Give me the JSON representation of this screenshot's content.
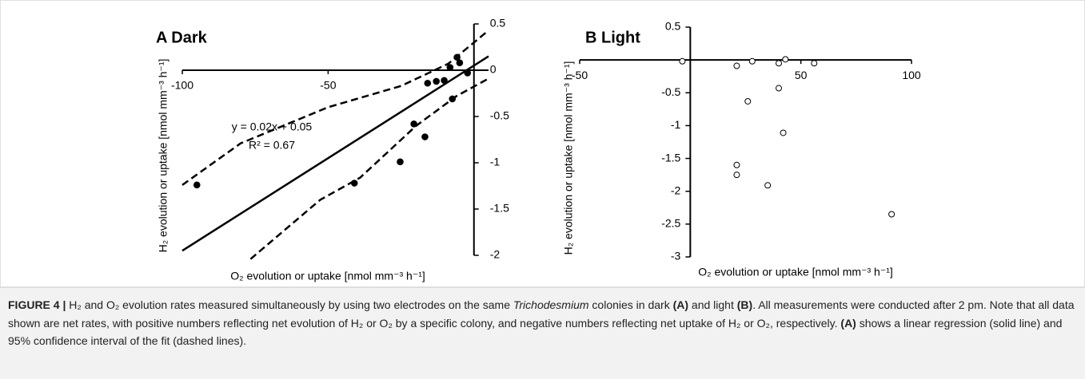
{
  "chart_data": [
    {
      "type": "scatter",
      "title": "A Dark",
      "x_label": "O₂ evolution or uptake [nmol mm⁻³ h⁻¹]",
      "y_label": "H₂ evolution or uptake [nmol mm⁻³ h⁻¹]",
      "xlim": [
        -100,
        5
      ],
      "ylim": [
        -2,
        0.5
      ],
      "xticks": [
        -100,
        -50
      ],
      "yticks": [
        0.5,
        0,
        -0.5,
        -1,
        -1.5,
        -2
      ],
      "ytick_side": "right",
      "annotations": [
        "y = 0.02x + 0.05",
        "R² = 0.67"
      ],
      "series": [
        {
          "kind": "points",
          "color": "#000000",
          "x": [
            -95,
            -41,
            -25.3,
            -20.6,
            -16.8,
            -15.9,
            -12.9,
            -10.2,
            -8.2,
            -5.8,
            -4.9,
            -7.4,
            -2.2
          ],
          "values": [
            -1.24,
            -1.22,
            -0.99,
            -0.58,
            -0.72,
            -0.14,
            -0.12,
            -0.11,
            0.03,
            0.14,
            0.08,
            -0.31,
            -0.03
          ]
        },
        {
          "kind": "solid",
          "color": "#000000",
          "x": [
            -100,
            5
          ],
          "values": [
            -1.95,
            0.15
          ]
        },
        {
          "kind": "dashed",
          "color": "#000000",
          "x": [
            -100,
            -80,
            -50,
            -25,
            -8.8,
            5
          ],
          "values": [
            -1.24,
            -0.79,
            -0.4,
            -0.17,
            0.07,
            0.43
          ]
        },
        {
          "kind": "dashed",
          "color": "#000000",
          "x": [
            -76.6,
            -52.7,
            -39,
            -19.8,
            -6,
            5
          ],
          "values": [
            -2.04,
            -1.4,
            -1.16,
            -0.6,
            -0.28,
            -0.09
          ]
        }
      ]
    },
    {
      "type": "scatter",
      "title": "B Light",
      "x_label": "O₂ evolution or uptake [nmol mm⁻³ h⁻¹]",
      "y_label": "H₂ evolution or uptake [nmol mm⁻³ h⁻¹]",
      "xlim": [
        -50,
        100
      ],
      "ylim": [
        -3,
        0.5
      ],
      "xticks": [
        -50,
        50,
        100
      ],
      "yticks": [
        0.5,
        -0.5,
        -1,
        -1.5,
        -2,
        -2.5,
        -3
      ],
      "ytick_side": "left",
      "series": [
        {
          "kind": "open-points",
          "color": "#000000",
          "x": [
            -3.6,
            21,
            28,
            43,
            40,
            56,
            40,
            26,
            42,
            21,
            21,
            35,
            91
          ],
          "values": [
            -0.02,
            -0.09,
            -0.02,
            0.01,
            -0.05,
            -0.05,
            -0.43,
            -0.63,
            -1.11,
            -1.6,
            -1.75,
            -1.91,
            -2.35
          ]
        }
      ]
    }
  ],
  "caption": [
    "FIGURE 4 |",
    " H₂ and O₂ evolution rates measured simultaneously by using two electrodes on the same ",
    "Trichodesmium",
    " colonies in dark ",
    "(A)",
    " and light ",
    "(B)",
    ". All measurements were conducted after 2 pm. Note that all data shown are net rates, with positive numbers reflecting net evolution of H₂ or O₂ by a specific colony, and negative numbers reflecting net uptake of H₂ or O₂, respectively. ",
    "(A)",
    " shows a linear regression (solid line) and 95% confidence interval of the fit (dashed lines)."
  ]
}
